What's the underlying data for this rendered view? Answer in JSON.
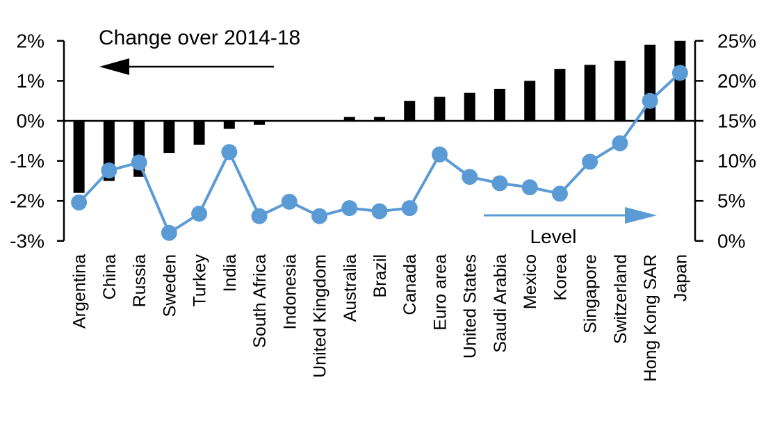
{
  "chart_data": {
    "type": "bar+line-dual-axis",
    "categories": [
      "Argentina",
      "China",
      "Russia",
      "Sweden",
      "Turkey",
      "India",
      "South Africa",
      "Indonesia",
      "United Kingdom",
      "Australia",
      "Brazil",
      "Canada",
      "Euro area",
      "United States",
      "Saudi Arabia",
      "Mexico",
      "Korea",
      "Singapore",
      "Switzerland",
      "Hong Kong SAR",
      "Japan"
    ],
    "series": [
      {
        "name": "Change over 2014-18",
        "type": "bar",
        "axis": "left",
        "unit": "percentage points",
        "values": [
          -1.8,
          -1.5,
          -1.4,
          -0.8,
          -0.6,
          -0.2,
          -0.1,
          0,
          0,
          0.1,
          0.1,
          0.5,
          0.6,
          0.7,
          0.8,
          1.0,
          1.3,
          1.4,
          1.5,
          1.9,
          2.0
        ]
      },
      {
        "name": "Level",
        "type": "line",
        "axis": "right",
        "unit": "%",
        "values": [
          4.8,
          8.8,
          9.8,
          1.0,
          3.4,
          11.1,
          3.1,
          4.9,
          3.1,
          4.1,
          3.7,
          4.1,
          10.8,
          8.0,
          7.2,
          6.7,
          5.9,
          9.9,
          12.2,
          17.5,
          21.0
        ]
      }
    ],
    "left_axis": {
      "range": [
        -3,
        2
      ],
      "ticks": [
        2,
        1,
        0,
        -1,
        -2,
        -3
      ],
      "tick_labels": [
        "2%",
        "1%",
        "0%",
        "-1%",
        "-2%",
        "-3%"
      ]
    },
    "right_axis": {
      "range": [
        0,
        25
      ],
      "ticks": [
        25,
        20,
        15,
        10,
        5,
        0
      ],
      "tick_labels": [
        "25%",
        "20%",
        "15%",
        "10%",
        "5%",
        "0%"
      ]
    },
    "annotations": {
      "bar_label": "Change over 2014-18",
      "bar_arrow_direction": "left",
      "line_label": "Level",
      "line_arrow_direction": "right"
    },
    "legend": "none",
    "grid": false,
    "colors": {
      "bar": "#000000",
      "line": "#5B9BD5",
      "text": "#000000",
      "background": "#FFFFFF"
    }
  }
}
